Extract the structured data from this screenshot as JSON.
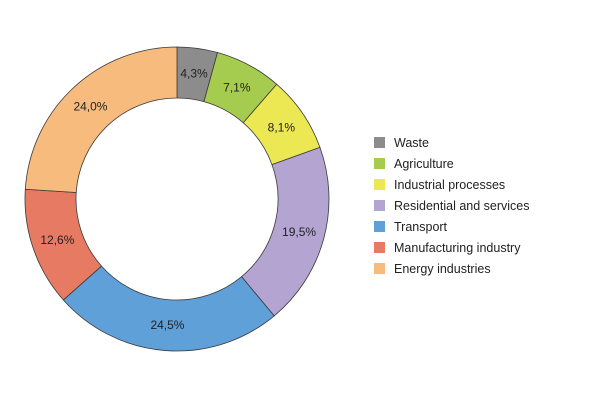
{
  "chart_data": {
    "type": "pie",
    "variant": "donut",
    "title": "",
    "categories": [
      "Waste",
      "Agriculture",
      "Industrial processes",
      "Residential and services",
      "Transport",
      "Manufacturing industry",
      "Energy industries"
    ],
    "values": [
      4.3,
      7.1,
      8.1,
      19.5,
      24.5,
      12.6,
      24.0
    ],
    "value_labels": [
      "4,3%",
      "7,1%",
      "8,1%",
      "19,5%",
      "24,5%",
      "12,6%",
      "24,0%"
    ],
    "colors": [
      "#8c8c8c",
      "#a6cc4f",
      "#ece854",
      "#b3a4d2",
      "#5fa0d9",
      "#e67a62",
      "#f7bb7e"
    ],
    "legend_position": "right"
  }
}
